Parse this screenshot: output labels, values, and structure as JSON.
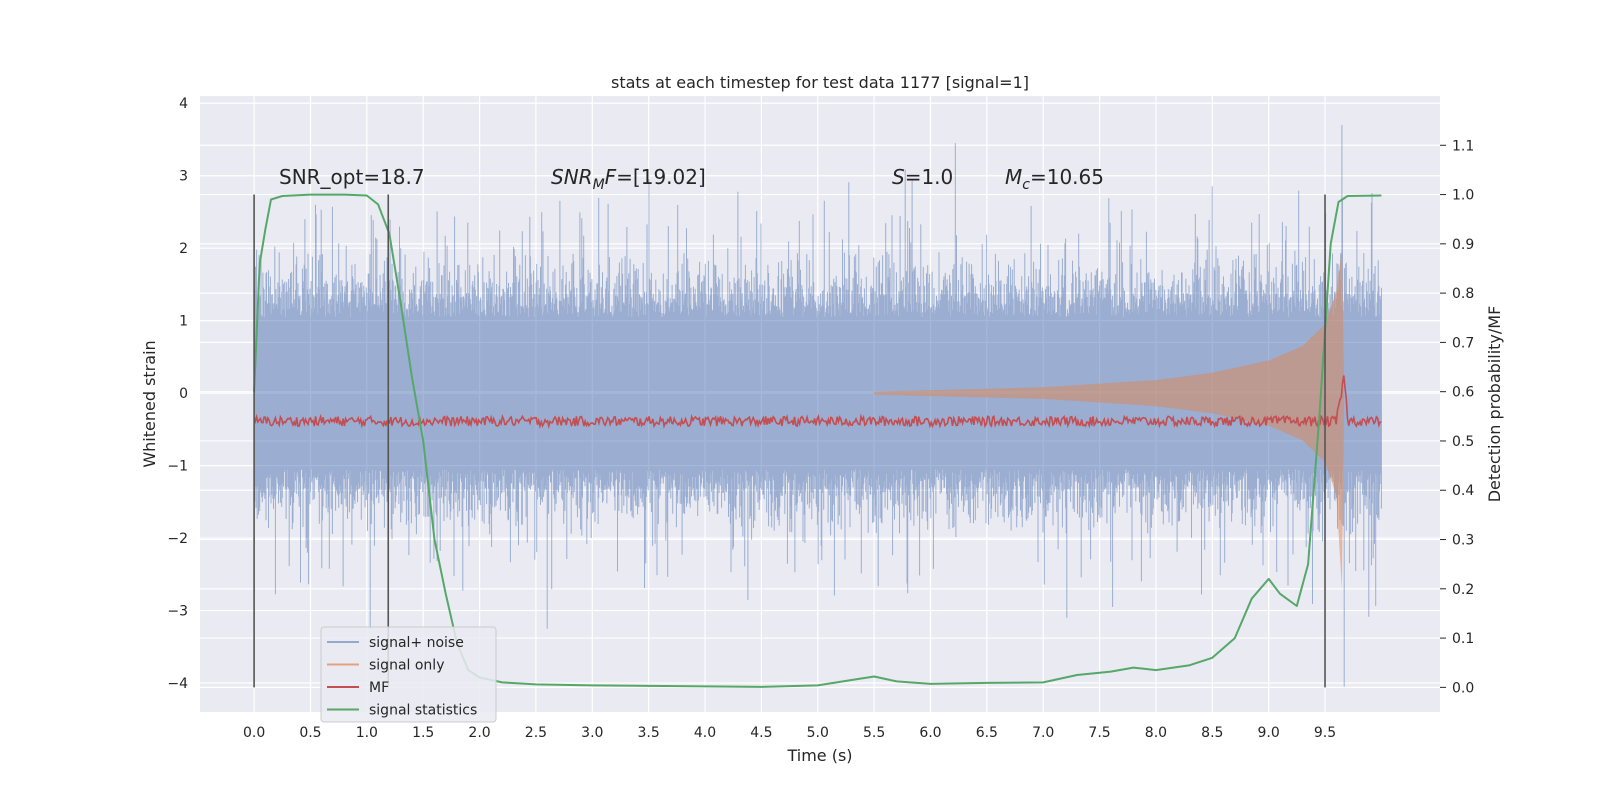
{
  "chart_data": {
    "type": "line",
    "title": "stats at each timestep for test data 1177 [signal=1]",
    "xlabel": "Time (s)",
    "ylabel": "Whitened strain",
    "y2label": "Detection probability/MF",
    "xlim": [
      -0.48,
      10.52
    ],
    "ylim": [
      -4.4,
      4.1
    ],
    "y2lim": [
      -0.05,
      1.2
    ],
    "grid": true,
    "legend_position": "lower-left",
    "xticks": [
      "0.0",
      "0.5",
      "1.0",
      "1.5",
      "2.0",
      "2.5",
      "3.0",
      "3.5",
      "4.0",
      "4.5",
      "5.0",
      "5.5",
      "6.0",
      "6.5",
      "7.0",
      "7.5",
      "8.0",
      "8.5",
      "9.0",
      "9.5"
    ],
    "yticks": [
      "4",
      "3",
      "2",
      "1",
      "0",
      "−1",
      "−2",
      "−3",
      "−4"
    ],
    "y2ticks": [
      "1.1",
      "1.0",
      "0.9",
      "0.8",
      "0.7",
      "0.6",
      "0.5",
      "0.4",
      "0.3",
      "0.2",
      "0.1",
      "0.0"
    ],
    "annotations": {
      "snr_opt": "SNR_opt=18.7",
      "snr_mf_sym": "SNR",
      "snr_mf_sub": "M",
      "snr_mf_sym2": "F",
      "snr_mf_val": "=[19.02]",
      "s_sym": "S",
      "s_val": "=1.0",
      "mc_sym": "M",
      "mc_sub": "c",
      "mc_val": "=10.65"
    },
    "vlines": [
      0.0,
      1.19,
      9.5
    ],
    "series": [
      {
        "name": "signal+ noise",
        "color": "#4c72b0",
        "alpha": 0.5,
        "axis": "left",
        "description_points": {
          "t_range": [
            0.0,
            10.0
          ],
          "envelope_typical": [
            -1.6,
            1.6
          ],
          "peaks": [
            [
              1.3,
              2.0
            ],
            [
              2.6,
              -3.25
            ],
            [
              6.22,
              3.45
            ],
            [
              9.65,
              3.7
            ],
            [
              9.67,
              -4.05
            ],
            [
              1.03,
              -3.25
            ]
          ]
        }
      },
      {
        "name": "signal only",
        "color": "#dd8452",
        "alpha": 0.5,
        "axis": "left",
        "points": [
          [
            5.5,
            0.02
          ],
          [
            7.0,
            0.08
          ],
          [
            8.0,
            0.18
          ],
          [
            8.5,
            0.28
          ],
          [
            9.0,
            0.45
          ],
          [
            9.3,
            0.65
          ],
          [
            9.5,
            0.95
          ],
          [
            9.6,
            1.4
          ],
          [
            9.65,
            2.0
          ],
          [
            9.67,
            0.0
          ]
        ]
      },
      {
        "name": "MF",
        "color": "#c44e52",
        "alpha": 1,
        "axis": "right",
        "points": [
          [
            0.0,
            0.54
          ],
          [
            9.6,
            0.54
          ],
          [
            9.65,
            0.6
          ],
          [
            9.67,
            0.64
          ],
          [
            9.7,
            0.54
          ],
          [
            10.0,
            0.54
          ]
        ]
      },
      {
        "name": "signal statistics",
        "color": "#55a868",
        "alpha": 1,
        "axis": "right",
        "points": [
          [
            0.0,
            0.6
          ],
          [
            0.05,
            0.86
          ],
          [
            0.1,
            0.93
          ],
          [
            0.15,
            0.99
          ],
          [
            0.25,
            0.997
          ],
          [
            0.5,
            1.0
          ],
          [
            0.8,
            1.0
          ],
          [
            1.0,
            0.998
          ],
          [
            1.1,
            0.98
          ],
          [
            1.2,
            0.92
          ],
          [
            1.3,
            0.78
          ],
          [
            1.4,
            0.63
          ],
          [
            1.5,
            0.5
          ],
          [
            1.6,
            0.3
          ],
          [
            1.7,
            0.19
          ],
          [
            1.8,
            0.09
          ],
          [
            1.9,
            0.035
          ],
          [
            2.0,
            0.02
          ],
          [
            2.2,
            0.01
          ],
          [
            2.5,
            0.006
          ],
          [
            3.0,
            0.004
          ],
          [
            3.5,
            0.003
          ],
          [
            4.0,
            0.002
          ],
          [
            4.5,
            0.001
          ],
          [
            5.0,
            0.004
          ],
          [
            5.3,
            0.015
          ],
          [
            5.5,
            0.022
          ],
          [
            5.7,
            0.012
          ],
          [
            6.0,
            0.007
          ],
          [
            6.5,
            0.009
          ],
          [
            7.0,
            0.01
          ],
          [
            7.3,
            0.025
          ],
          [
            7.6,
            0.032
          ],
          [
            7.8,
            0.04
          ],
          [
            8.0,
            0.035
          ],
          [
            8.3,
            0.045
          ],
          [
            8.5,
            0.06
          ],
          [
            8.7,
            0.1
          ],
          [
            8.85,
            0.18
          ],
          [
            9.0,
            0.22
          ],
          [
            9.1,
            0.19
          ],
          [
            9.25,
            0.165
          ],
          [
            9.35,
            0.25
          ],
          [
            9.45,
            0.55
          ],
          [
            9.55,
            0.9
          ],
          [
            9.62,
            0.985
          ],
          [
            9.7,
            0.997
          ],
          [
            10.0,
            0.998
          ]
        ]
      }
    ],
    "legend": [
      "signal+ noise",
      "signal only",
      "MF",
      "signal statistics"
    ]
  }
}
